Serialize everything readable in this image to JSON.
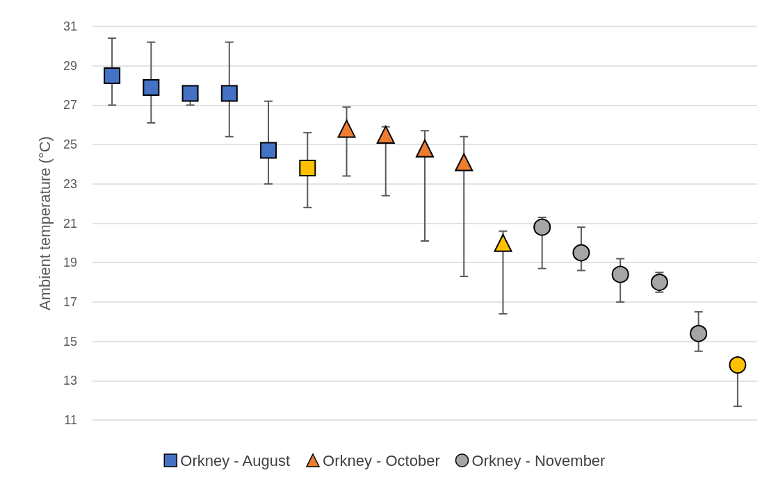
{
  "chart_data": {
    "type": "scatter",
    "ylabel": "Ambient temperature (°C)",
    "categories": [
      null,
      null,
      null,
      null,
      null,
      null,
      null,
      null,
      null,
      null,
      null,
      null,
      null,
      null,
      null,
      null,
      null
    ],
    "series": [
      {
        "name": "Orkney - August",
        "color": "#4472c4",
        "marker": "square",
        "values": [
          28.5,
          27.9,
          27.6,
          27.6,
          24.7,
          23.8,
          null,
          null,
          null,
          null,
          null,
          null,
          null,
          null,
          null,
          null,
          null
        ],
        "colors": [
          "#4472c4",
          "#4472c4",
          "#4472c4",
          "#4472c4",
          "#4472c4",
          "#ffc000",
          null,
          null,
          null,
          null,
          null,
          null,
          null,
          null,
          null,
          null,
          null
        ],
        "errors": [
          [
            27.0,
            30.4
          ],
          [
            26.1,
            30.2
          ],
          [
            27.0,
            27.6
          ],
          [
            25.4,
            30.2
          ],
          [
            23.0,
            27.2
          ],
          [
            21.8,
            25.6
          ],
          null,
          null,
          null,
          null,
          null,
          null,
          null,
          null,
          null,
          null,
          null
        ]
      },
      {
        "name": "Orkney - October",
        "color": "#ed7d31",
        "marker": "triangle",
        "values": [
          null,
          null,
          null,
          null,
          null,
          null,
          25.8,
          25.5,
          24.8,
          24.1,
          20.0,
          null,
          null,
          null,
          null,
          null,
          null
        ],
        "colors": [
          null,
          null,
          null,
          null,
          null,
          null,
          "#ed7d31",
          "#ed7d31",
          "#ed7d31",
          "#ed7d31",
          "#ffc000",
          null,
          null,
          null,
          null,
          null,
          null
        ],
        "errors": [
          null,
          null,
          null,
          null,
          null,
          null,
          [
            23.4,
            26.9
          ],
          [
            22.4,
            25.9
          ],
          [
            20.1,
            25.7
          ],
          [
            18.3,
            25.4
          ],
          [
            16.4,
            20.6
          ],
          null,
          null,
          null,
          null,
          null,
          null
        ]
      },
      {
        "name": "Orkney - November",
        "color": "#a5a5a5",
        "marker": "circle",
        "values": [
          null,
          null,
          null,
          null,
          null,
          null,
          null,
          null,
          null,
          null,
          null,
          20.8,
          19.5,
          18.4,
          18.0,
          15.4,
          13.8
        ],
        "colors": [
          null,
          null,
          null,
          null,
          null,
          null,
          null,
          null,
          null,
          null,
          null,
          "#a5a5a5",
          "#a5a5a5",
          "#a5a5a5",
          "#a5a5a5",
          "#a5a5a5",
          "#ffc000"
        ],
        "errors": [
          null,
          null,
          null,
          null,
          null,
          null,
          null,
          null,
          null,
          null,
          null,
          [
            18.7,
            21.3
          ],
          [
            18.6,
            20.8
          ],
          [
            17.0,
            19.2
          ],
          [
            17.5,
            18.5
          ],
          [
            14.5,
            16.5
          ],
          [
            11.7,
            13.8
          ]
        ]
      }
    ],
    "ylim": [
      11,
      31
    ],
    "yticks": [
      11,
      13,
      15,
      17,
      19,
      21,
      23,
      25,
      27,
      29,
      31
    ],
    "grid": "y",
    "legend": "bottom",
    "tick_labels": "y"
  }
}
